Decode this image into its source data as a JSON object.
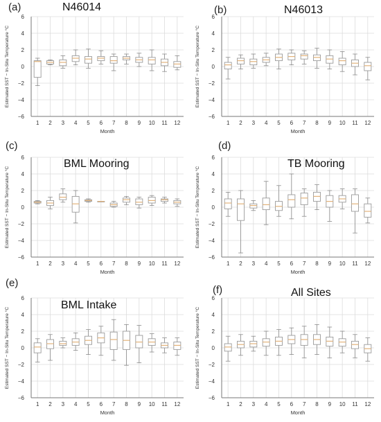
{
  "figure": {
    "ylabel": "Estimated SST − In-Situ Temperature °C",
    "xlabel": "Month",
    "y_ticks": [
      "6",
      "4",
      "2",
      "0",
      "−2",
      "−4",
      "−6"
    ],
    "x_ticks": [
      "1",
      "2",
      "3",
      "4",
      "5",
      "6",
      "7",
      "8",
      "9",
      "10",
      "11",
      "12"
    ]
  },
  "chart_data": [
    {
      "type": "box",
      "panel_label": "(a)",
      "title": "N46014",
      "xlabel": "Month",
      "ylabel": "Estimated SST − In-Situ Temperature °C",
      "ylim": [
        -6,
        6
      ],
      "grid": true,
      "categories": [
        "1",
        "2",
        "3",
        "4",
        "5",
        "6",
        "7",
        "8",
        "9",
        "10",
        "11",
        "12"
      ],
      "boxes": [
        {
          "min": -2.3,
          "q1": -1.3,
          "median": 0.6,
          "q3": 0.7,
          "max": 1.0
        },
        {
          "min": 0.2,
          "q1": 0.3,
          "median": 0.5,
          "q3": 0.7,
          "max": 0.8
        },
        {
          "min": -0.2,
          "q1": 0.1,
          "median": 0.5,
          "q3": 0.8,
          "max": 1.3
        },
        {
          "min": 0.2,
          "q1": 0.6,
          "median": 1.0,
          "q3": 1.3,
          "max": 2.0
        },
        {
          "min": -0.2,
          "q1": 0.4,
          "median": 0.9,
          "q3": 1.2,
          "max": 2.1
        },
        {
          "min": 0.3,
          "q1": 0.7,
          "median": 1.0,
          "q3": 1.2,
          "max": 1.9
        },
        {
          "min": -0.5,
          "q1": 0.4,
          "median": 0.7,
          "q3": 1.2,
          "max": 1.5
        },
        {
          "min": 0.3,
          "q1": 0.8,
          "median": 1.0,
          "q3": 1.2,
          "max": 1.5
        },
        {
          "min": 0.0,
          "q1": 0.5,
          "median": 0.8,
          "q3": 1.1,
          "max": 1.6
        },
        {
          "min": -0.5,
          "q1": 0.3,
          "median": 0.8,
          "q3": 1.1,
          "max": 2.0
        },
        {
          "min": -0.6,
          "q1": 0.1,
          "median": 0.5,
          "q3": 0.9,
          "max": 1.5
        },
        {
          "min": -0.4,
          "q1": -0.1,
          "median": 0.3,
          "q3": 0.6,
          "max": 1.3
        }
      ]
    },
    {
      "type": "box",
      "panel_label": "(b)",
      "title": "N46013",
      "xlabel": "Month",
      "ylabel": "Estimated SST − In-Situ Temperature °C",
      "ylim": [
        -6,
        6
      ],
      "grid": true,
      "categories": [
        "1",
        "2",
        "3",
        "4",
        "5",
        "6",
        "7",
        "8",
        "9",
        "10",
        "11",
        "12"
      ],
      "boxes": [
        {
          "min": -1.5,
          "q1": -0.3,
          "median": 0.2,
          "q3": 0.5,
          "max": 1.1
        },
        {
          "min": -0.3,
          "q1": 0.3,
          "median": 0.7,
          "q3": 1.0,
          "max": 1.4
        },
        {
          "min": -0.2,
          "q1": 0.2,
          "median": 0.6,
          "q3": 0.9,
          "max": 1.5
        },
        {
          "min": 0.1,
          "q1": 0.5,
          "median": 0.8,
          "q3": 1.1,
          "max": 1.6
        },
        {
          "min": -0.3,
          "q1": 0.7,
          "median": 1.1,
          "q3": 1.5,
          "max": 2.1
        },
        {
          "min": 0.2,
          "q1": 0.8,
          "median": 1.2,
          "q3": 1.6,
          "max": 2.0
        },
        {
          "min": 0.3,
          "q1": 0.9,
          "median": 1.3,
          "q3": 1.5,
          "max": 1.9
        },
        {
          "min": -0.2,
          "q1": 0.7,
          "median": 1.1,
          "q3": 1.4,
          "max": 2.2
        },
        {
          "min": -0.3,
          "q1": 0.4,
          "median": 0.9,
          "q3": 1.3,
          "max": 2.0
        },
        {
          "min": -0.6,
          "q1": 0.2,
          "median": 0.7,
          "q3": 1.0,
          "max": 1.8
        },
        {
          "min": -1.0,
          "q1": 0.0,
          "median": 0.4,
          "q3": 0.8,
          "max": 1.5
        },
        {
          "min": -1.6,
          "q1": -0.5,
          "median": 0.1,
          "q3": 0.5,
          "max": 1.1
        }
      ]
    },
    {
      "type": "box",
      "panel_label": "(c)",
      "title": "BML Mooring",
      "xlabel": "Month",
      "ylabel": "Estimated SST − In-Situ Temperature °C",
      "ylim": [
        -6,
        6
      ],
      "grid": true,
      "categories": [
        "1",
        "2",
        "3",
        "4",
        "5",
        "6",
        "7",
        "8",
        "9",
        "10",
        "11",
        "12"
      ],
      "boxes": [
        {
          "min": 0.4,
          "q1": 0.5,
          "median": 0.6,
          "q3": 0.7,
          "max": 0.8
        },
        {
          "min": -0.2,
          "q1": 0.2,
          "median": 0.5,
          "q3": 0.8,
          "max": 1.2
        },
        {
          "min": 0.6,
          "q1": 0.9,
          "median": 1.2,
          "q3": 1.6,
          "max": 2.2
        },
        {
          "min": -1.9,
          "q1": -0.6,
          "median": 0.4,
          "q3": 1.3,
          "max": 2.0
        },
        {
          "min": 0.6,
          "q1": 0.7,
          "median": 0.8,
          "q3": 0.9,
          "max": 1.0
        },
        {
          "min": 0.7,
          "q1": 0.7,
          "median": 0.7,
          "q3": 0.7,
          "max": 0.7
        },
        {
          "min": 0.0,
          "q1": 0.1,
          "median": 0.3,
          "q3": 0.5,
          "max": 0.7
        },
        {
          "min": 0.3,
          "q1": 0.6,
          "median": 0.9,
          "q3": 1.1,
          "max": 1.3
        },
        {
          "min": -0.1,
          "q1": 0.3,
          "median": 0.6,
          "q3": 1.0,
          "max": 1.2
        },
        {
          "min": 0.2,
          "q1": 0.5,
          "median": 0.8,
          "q3": 1.2,
          "max": 1.4
        },
        {
          "min": 0.5,
          "q1": 0.7,
          "median": 0.9,
          "q3": 1.0,
          "max": 1.2
        },
        {
          "min": 0.1,
          "q1": 0.4,
          "median": 0.6,
          "q3": 0.8,
          "max": 1.0
        }
      ]
    },
    {
      "type": "box",
      "panel_label": "(d)",
      "title": "TB Mooring",
      "xlabel": "Month",
      "ylabel": "Estimated SST − In-Situ Temperature °C",
      "ylim": [
        -6,
        6
      ],
      "grid": true,
      "categories": [
        "1",
        "2",
        "3",
        "4",
        "5",
        "6",
        "7",
        "8",
        "9",
        "10",
        "11",
        "12"
      ],
      "boxes": [
        {
          "min": -1.1,
          "q1": -0.2,
          "median": 0.5,
          "q3": 1.0,
          "max": 1.8
        },
        {
          "min": -5.5,
          "q1": -1.6,
          "median": 0.4,
          "q3": 1.0,
          "max": 2.0
        },
        {
          "min": -0.4,
          "q1": -0.1,
          "median": 0.2,
          "q3": 0.4,
          "max": 0.8
        },
        {
          "min": -2.1,
          "q1": -0.3,
          "median": 0.3,
          "q3": 1.1,
          "max": 3.1
        },
        {
          "min": -1.1,
          "q1": -0.4,
          "median": 0.1,
          "q3": 0.7,
          "max": 2.6
        },
        {
          "min": -1.4,
          "q1": 0.0,
          "median": 0.9,
          "q3": 1.5,
          "max": 4.0
        },
        {
          "min": -1.1,
          "q1": 0.3,
          "median": 1.1,
          "q3": 1.7,
          "max": 2.2
        },
        {
          "min": -0.3,
          "q1": 0.7,
          "median": 1.3,
          "q3": 1.8,
          "max": 2.7
        },
        {
          "min": -1.7,
          "q1": 0.0,
          "median": 0.7,
          "q3": 1.4,
          "max": 2.0
        },
        {
          "min": -0.2,
          "q1": 0.6,
          "median": 1.0,
          "q3": 1.4,
          "max": 2.2
        },
        {
          "min": -3.1,
          "q1": -0.5,
          "median": 0.4,
          "q3": 1.5,
          "max": 2.2
        },
        {
          "min": -1.9,
          "q1": -1.2,
          "median": -0.5,
          "q3": 0.4,
          "max": 1.1
        }
      ]
    },
    {
      "type": "box",
      "panel_label": "(e)",
      "title": "BML Intake",
      "xlabel": "Month",
      "ylabel": "Estimated SST − In-Situ Temperature °C",
      "ylim": [
        -6,
        6
      ],
      "grid": true,
      "categories": [
        "1",
        "2",
        "3",
        "4",
        "5",
        "6",
        "7",
        "8",
        "9",
        "10",
        "11",
        "12"
      ],
      "boxes": [
        {
          "min": -1.7,
          "q1": -0.6,
          "median": 0.1,
          "q3": 0.6,
          "max": 1.1
        },
        {
          "min": -1.5,
          "q1": -0.1,
          "median": 0.5,
          "q3": 1.0,
          "max": 1.6
        },
        {
          "min": 0.0,
          "q1": 0.3,
          "median": 0.5,
          "q3": 0.8,
          "max": 1.2
        },
        {
          "min": -0.3,
          "q1": 0.3,
          "median": 0.7,
          "q3": 1.1,
          "max": 1.8
        },
        {
          "min": -0.8,
          "q1": 0.4,
          "median": 0.9,
          "q3": 1.4,
          "max": 2.2
        },
        {
          "min": -0.9,
          "q1": 0.6,
          "median": 1.2,
          "q3": 1.8,
          "max": 2.6
        },
        {
          "min": -1.5,
          "q1": -0.2,
          "median": 1.0,
          "q3": 1.9,
          "max": 3.4
        },
        {
          "min": -2.1,
          "q1": -0.2,
          "median": 0.9,
          "q3": 2.0,
          "max": 2.8
        },
        {
          "min": -1.8,
          "q1": 0.0,
          "median": 0.7,
          "q3": 1.5,
          "max": 2.7
        },
        {
          "min": -0.5,
          "q1": 0.3,
          "median": 0.7,
          "q3": 1.1,
          "max": 1.7
        },
        {
          "min": -0.6,
          "q1": 0.0,
          "median": 0.3,
          "q3": 0.6,
          "max": 1.2
        },
        {
          "min": -0.9,
          "q1": -0.2,
          "median": 0.3,
          "q3": 0.7,
          "max": 1.2
        }
      ]
    },
    {
      "type": "box",
      "panel_label": "(f)",
      "title": "All Sites",
      "xlabel": "Month",
      "ylabel": "Estimated SST − In-Situ Temperature °C",
      "ylim": [
        -6,
        6
      ],
      "grid": true,
      "categories": [
        "1",
        "2",
        "3",
        "4",
        "5",
        "6",
        "7",
        "8",
        "9",
        "10",
        "11",
        "12"
      ],
      "boxes": [
        {
          "min": -1.6,
          "q1": -0.4,
          "median": 0.1,
          "q3": 0.5,
          "max": 1.4
        },
        {
          "min": -0.9,
          "q1": 0.0,
          "median": 0.4,
          "q3": 0.8,
          "max": 1.6
        },
        {
          "min": -0.4,
          "q1": 0.1,
          "median": 0.5,
          "q3": 0.8,
          "max": 1.4
        },
        {
          "min": -0.9,
          "q1": 0.2,
          "median": 0.7,
          "q3": 1.1,
          "max": 2.0
        },
        {
          "min": -0.9,
          "q1": 0.3,
          "median": 0.8,
          "q3": 1.3,
          "max": 2.2
        },
        {
          "min": -0.8,
          "q1": 0.5,
          "median": 1.0,
          "q3": 1.5,
          "max": 2.4
        },
        {
          "min": -1.2,
          "q1": 0.3,
          "median": 1.0,
          "q3": 1.6,
          "max": 2.6
        },
        {
          "min": -0.8,
          "q1": 0.4,
          "median": 1.0,
          "q3": 1.6,
          "max": 2.8
        },
        {
          "min": -1.2,
          "q1": 0.2,
          "median": 0.8,
          "q3": 1.3,
          "max": 2.5
        },
        {
          "min": -0.6,
          "q1": 0.2,
          "median": 0.7,
          "q3": 1.1,
          "max": 2.0
        },
        {
          "min": -1.2,
          "q1": -0.1,
          "median": 0.4,
          "q3": 0.8,
          "max": 1.6
        },
        {
          "min": -1.6,
          "q1": -0.6,
          "median": -0.1,
          "q3": 0.4,
          "max": 1.2
        }
      ]
    }
  ],
  "style": {
    "box_edge": "#9a9a9a",
    "median": "#e2b27a",
    "whisker": "#8a8a8a",
    "grid": "#dcdcdc",
    "axis": "#777777",
    "tick_text": "#333333"
  }
}
